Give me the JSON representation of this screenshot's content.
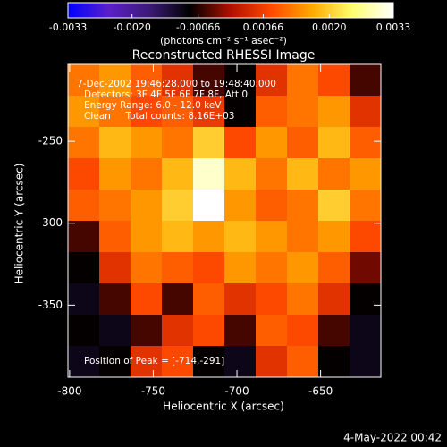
{
  "chart_data": {
    "type": "heatmap",
    "title": "Reconstructed RHESSI Image",
    "x_label": "Heliocentric X (arcsec)",
    "y_label": "Heliocentric Y (arcsec)",
    "colorbar_label": "(photons cm⁻² s⁻¹ asec⁻²)",
    "clim": [
      -0.0033,
      0.0033
    ],
    "cticks": [
      -0.0033,
      {
        "value": -0.002,
        "label": "-0.0020"
      },
      -0.00066,
      0.00066,
      {
        "value": 0.002,
        "label": "0.0020"
      },
      0.0033
    ],
    "colormap": [
      "#0000ff",
      "#5a20c8",
      "#3c1a78",
      "#000000",
      "#b01000",
      "#ff4a00",
      "#ffa800",
      "#ffff70",
      "#ffffff"
    ],
    "xlim": [
      -801,
      -614
    ],
    "ylim": [
      -394,
      -203
    ],
    "xticks": [
      -800,
      -750,
      -700,
      -650
    ],
    "yticks": [
      -350,
      -300,
      -250
    ],
    "z": [
      [
        0.0012,
        0.0015,
        0.001,
        0.0005,
        -0.0005,
        -0.0008,
        0.0005,
        0.0012,
        0.0008,
        -0.0005
      ],
      [
        0.0015,
        0.0012,
        0.0008,
        0.001,
        0.0006,
        -0.0008,
        0.001,
        0.0012,
        0.0015,
        0.0005
      ],
      [
        0.0012,
        0.0018,
        0.0015,
        0.0012,
        0.002,
        0.0008,
        0.0015,
        0.001,
        0.0018,
        0.001
      ],
      [
        0.0008,
        0.0015,
        0.0012,
        0.0018,
        0.003,
        0.0018,
        0.0012,
        0.0018,
        0.0012,
        0.0015
      ],
      [
        0.001,
        0.0012,
        0.0015,
        0.002,
        0.0033,
        0.0015,
        0.001,
        0.0012,
        0.002,
        0.0012
      ],
      [
        -0.0005,
        0.001,
        0.0015,
        0.0018,
        0.0015,
        0.0018,
        0.0015,
        0.0012,
        0.0015,
        0.0008
      ],
      [
        -0.0008,
        0.0005,
        0.0012,
        0.001,
        0.0008,
        0.0015,
        0.0012,
        0.0015,
        0.001,
        -0.0003
      ],
      [
        -0.001,
        -0.0005,
        0.0008,
        -0.0005,
        0.001,
        0.0005,
        0.0008,
        0.0012,
        0.0005,
        -0.0008
      ],
      [
        -0.0008,
        -0.001,
        -0.0005,
        0.0005,
        0.0008,
        -0.0005,
        0.001,
        0.0008,
        -0.0005,
        -0.001
      ],
      [
        -0.001,
        -0.0008,
        0.0005,
        0.0008,
        -0.0008,
        -0.001,
        0.0005,
        0.001,
        -0.0008,
        -0.001
      ]
    ],
    "annotations": [
      "7-Dec-2002 19:46:28.000 to 19:48:40.000",
      "Detectors: 3F 4F 5F 6F 7F 8F, Att 0",
      "Energy Range: 6.0 - 12.0 keV",
      "Clean     Total counts: 8.16E+03"
    ],
    "peak_label": "Position of Peak = [-714,-291]",
    "footer": "4-May-2022 00:42"
  }
}
